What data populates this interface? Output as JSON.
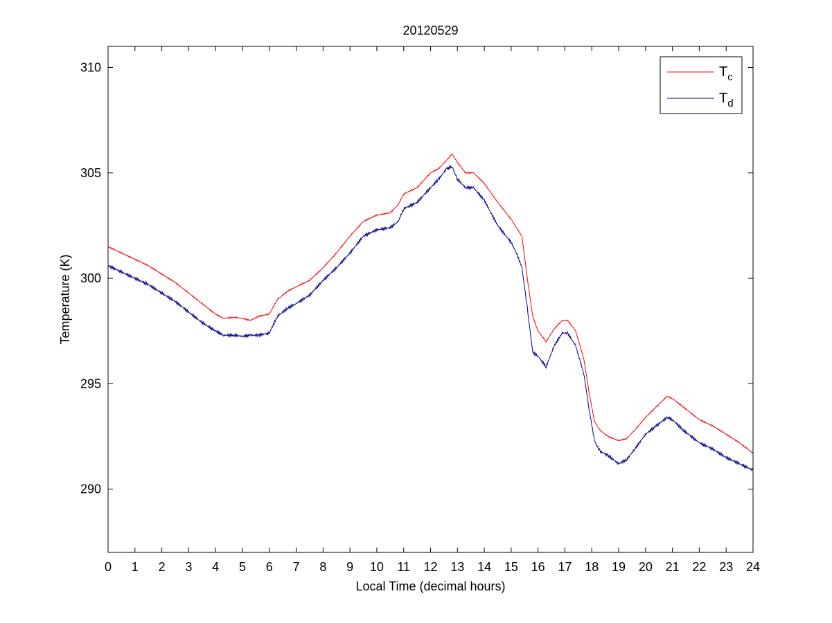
{
  "chart_data": {
    "type": "line",
    "title": "20120529",
    "xlabel": "Local Time (decimal hours)",
    "ylabel": "Temperature (K)",
    "xlim": [
      0,
      24
    ],
    "ylim": [
      287,
      311
    ],
    "xticks": [
      0,
      1,
      2,
      3,
      4,
      5,
      6,
      7,
      8,
      9,
      10,
      11,
      12,
      13,
      14,
      15,
      16,
      17,
      18,
      19,
      20,
      21,
      22,
      23,
      24
    ],
    "yticks": [
      290,
      295,
      300,
      305,
      310
    ],
    "grid": false,
    "legend_position": "top-right",
    "series": [
      {
        "name": "T",
        "name_subscript": "c",
        "color": "#ff0000",
        "x": [
          0,
          0.5,
          1,
          1.5,
          2,
          2.5,
          3,
          3.5,
          4,
          4.3,
          4.7,
          5,
          5.3,
          5.6,
          6,
          6.3,
          6.7,
          7,
          7.5,
          8,
          8.5,
          9,
          9.5,
          10,
          10.5,
          10.8,
          11,
          11.5,
          12,
          12.3,
          12.6,
          12.8,
          13,
          13.3,
          13.6,
          14,
          14.5,
          15,
          15.2,
          15.4,
          15.6,
          15.8,
          16,
          16.3,
          16.6,
          16.9,
          17.1,
          17.4,
          17.7,
          17.9,
          18.1,
          18.3,
          18.6,
          19,
          19.3,
          19.6,
          20,
          20.4,
          20.8,
          21,
          21.4,
          22,
          22.5,
          23,
          23.5,
          24
        ],
        "y": [
          301.5,
          301.2,
          300.9,
          300.6,
          300.2,
          299.8,
          299.3,
          298.8,
          298.3,
          298.1,
          298.15,
          298.1,
          298.0,
          298.2,
          298.3,
          299.0,
          299.4,
          299.6,
          299.9,
          300.5,
          301.2,
          302.0,
          302.7,
          303.0,
          303.1,
          303.5,
          304.0,
          304.3,
          305.0,
          305.2,
          305.6,
          305.9,
          305.5,
          305.0,
          305.0,
          304.5,
          303.6,
          302.8,
          302.4,
          302.0,
          300.0,
          298.2,
          297.5,
          297.0,
          297.6,
          298.0,
          298.0,
          297.5,
          296.2,
          294.6,
          293.2,
          292.8,
          292.5,
          292.3,
          292.4,
          292.8,
          293.4,
          293.9,
          294.4,
          294.3,
          293.9,
          293.3,
          293.0,
          292.6,
          292.2,
          291.7
        ]
      },
      {
        "name": "T",
        "name_subscript": "d",
        "color": "#00008b",
        "x": [
          0,
          0.5,
          1,
          1.5,
          2,
          2.5,
          3,
          3.5,
          4,
          4.3,
          4.7,
          5,
          5.3,
          5.6,
          6,
          6.3,
          6.7,
          7,
          7.5,
          8,
          8.5,
          9,
          9.5,
          10,
          10.5,
          10.8,
          11,
          11.5,
          12,
          12.3,
          12.6,
          12.8,
          13,
          13.3,
          13.6,
          14,
          14.5,
          15,
          15.2,
          15.4,
          15.6,
          15.8,
          16,
          16.3,
          16.6,
          16.9,
          17.1,
          17.4,
          17.7,
          17.9,
          18.1,
          18.3,
          18.6,
          19,
          19.3,
          19.6,
          20,
          20.4,
          20.8,
          21,
          21.4,
          22,
          22.5,
          23,
          23.5,
          24
        ],
        "y": [
          300.6,
          300.3,
          300.0,
          299.7,
          299.3,
          298.9,
          298.4,
          297.9,
          297.5,
          297.3,
          297.3,
          297.25,
          297.3,
          297.3,
          297.4,
          298.2,
          298.6,
          298.8,
          299.2,
          299.9,
          300.5,
          301.2,
          302.0,
          302.3,
          302.4,
          302.7,
          303.3,
          303.6,
          304.3,
          304.7,
          305.2,
          305.3,
          304.7,
          304.3,
          304.3,
          303.7,
          302.5,
          301.7,
          301.2,
          300.5,
          298.6,
          296.5,
          296.3,
          295.8,
          296.8,
          297.4,
          297.4,
          296.8,
          295.5,
          293.8,
          292.3,
          291.8,
          291.6,
          291.2,
          291.4,
          291.9,
          292.6,
          293.0,
          293.4,
          293.3,
          292.8,
          292.2,
          291.9,
          291.5,
          291.2,
          290.9
        ]
      }
    ]
  }
}
